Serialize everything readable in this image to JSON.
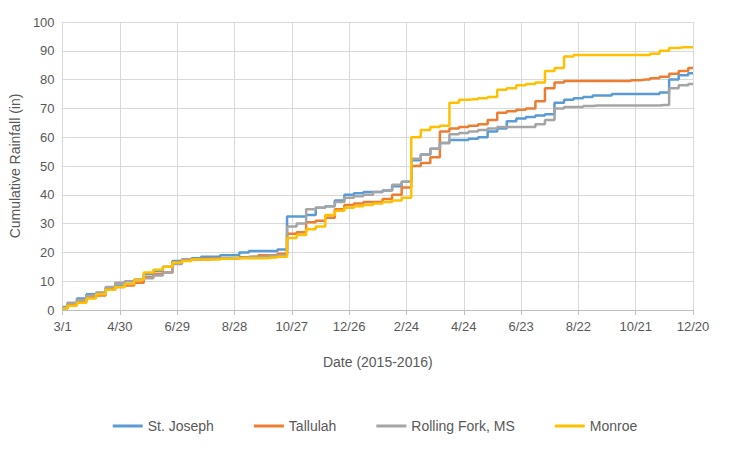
{
  "chart_data": {
    "type": "line",
    "x_label": "Date (2015-2016)",
    "y_label": "Cumulative Rainfall (in)",
    "categories": [
      "3/1",
      null,
      null,
      null,
      null,
      null,
      "4/30",
      null,
      null,
      null,
      null,
      null,
      "6/29",
      null,
      null,
      null,
      null,
      null,
      "8/28",
      null,
      null,
      null,
      null,
      null,
      "10/27",
      null,
      null,
      null,
      null,
      null,
      "12/26",
      null,
      null,
      null,
      null,
      null,
      "2/24",
      null,
      null,
      null,
      null,
      null,
      "4/24",
      null,
      null,
      null,
      null,
      null,
      "6/23",
      null,
      null,
      null,
      null,
      null,
      "8/22",
      null,
      null,
      null,
      null,
      null,
      "10/21",
      null,
      null,
      null,
      null,
      null,
      "12/20"
    ],
    "series": [
      {
        "name": "St. Joseph",
        "color": "#5B9BD5",
        "values": [
          1,
          2,
          4,
          5.5,
          6,
          7.5,
          8.5,
          9,
          10.5,
          12.5,
          13.5,
          15,
          17,
          17.5,
          18,
          18.5,
          18.5,
          19,
          19,
          20,
          20.5,
          20.5,
          20.5,
          21,
          32.5,
          32.5,
          33,
          35.5,
          36,
          38,
          40,
          40.5,
          41,
          41,
          41.5,
          43,
          44.5,
          52,
          54,
          56,
          58,
          59,
          59,
          59.5,
          60,
          62,
          63,
          65.5,
          66.5,
          67,
          67.5,
          68,
          72,
          73,
          73.5,
          74,
          74.5,
          74.5,
          75,
          75,
          75,
          75,
          75,
          75.5,
          80,
          81.5,
          82.2
        ]
      },
      {
        "name": "Tallulah",
        "color": "#ED7D31",
        "values": [
          0.5,
          2,
          3,
          4.5,
          5,
          7,
          8,
          8.5,
          9.5,
          11.5,
          12.5,
          13,
          16.5,
          17.5,
          17.5,
          17.8,
          18,
          18,
          18,
          18.3,
          18.5,
          19,
          19,
          19.5,
          26.5,
          27,
          30.5,
          31,
          32,
          35,
          36.5,
          37,
          37.5,
          37.5,
          38.5,
          40,
          42.5,
          50,
          51,
          53,
          62,
          63,
          63.5,
          64,
          64.5,
          66,
          68.5,
          69,
          69.5,
          70,
          72.5,
          77,
          79,
          79.5,
          79.5,
          79.5,
          79.5,
          79.5,
          79.5,
          79.5,
          79.8,
          80,
          80.5,
          81,
          82,
          83,
          84
        ]
      },
      {
        "name": "Rolling Fork, MS",
        "color": "#A5A5A5",
        "values": [
          0.5,
          2.5,
          3.5,
          5,
          6,
          8,
          9.5,
          10,
          10.5,
          11,
          12,
          13,
          16,
          17.5,
          17.5,
          17.5,
          17.8,
          18,
          18,
          18.2,
          18.5,
          18.5,
          18.8,
          19,
          29,
          30,
          35,
          35.5,
          36,
          37.5,
          39,
          39.5,
          40,
          41,
          41.5,
          43.5,
          44.5,
          52.5,
          54,
          56,
          58,
          61,
          61.5,
          62,
          62.5,
          63,
          63.5,
          63.5,
          63.5,
          63.5,
          64.5,
          66,
          70,
          70.5,
          70.5,
          70.8,
          71,
          71,
          71,
          71,
          71,
          71,
          71,
          71.2,
          77,
          78,
          78.5
        ]
      },
      {
        "name": "Monroe",
        "color": "#FFC000",
        "values": [
          0.5,
          1.5,
          2.5,
          4,
          5.5,
          7,
          8,
          9,
          10.5,
          13,
          14,
          15,
          16.5,
          17,
          17.5,
          17.5,
          17.5,
          17.8,
          18,
          18,
          18,
          18,
          18.2,
          18.5,
          25,
          26,
          28,
          29,
          33,
          34.5,
          35.5,
          36,
          36.5,
          37,
          37.5,
          38,
          39,
          60,
          62.5,
          63.5,
          64,
          72,
          73,
          73.2,
          73.5,
          74,
          76.5,
          77,
          78,
          78.5,
          79,
          83,
          84,
          88,
          88.5,
          88.5,
          88.5,
          88.5,
          88.5,
          88.5,
          88.5,
          88.5,
          89,
          90,
          91,
          91.2,
          91.2
        ]
      }
    ],
    "ylim": [
      0,
      100
    ],
    "yticks": [
      0,
      10,
      20,
      30,
      40,
      50,
      60,
      70,
      80,
      90,
      100
    ],
    "grid": true,
    "legend": "bottom",
    "line_style": "step"
  }
}
